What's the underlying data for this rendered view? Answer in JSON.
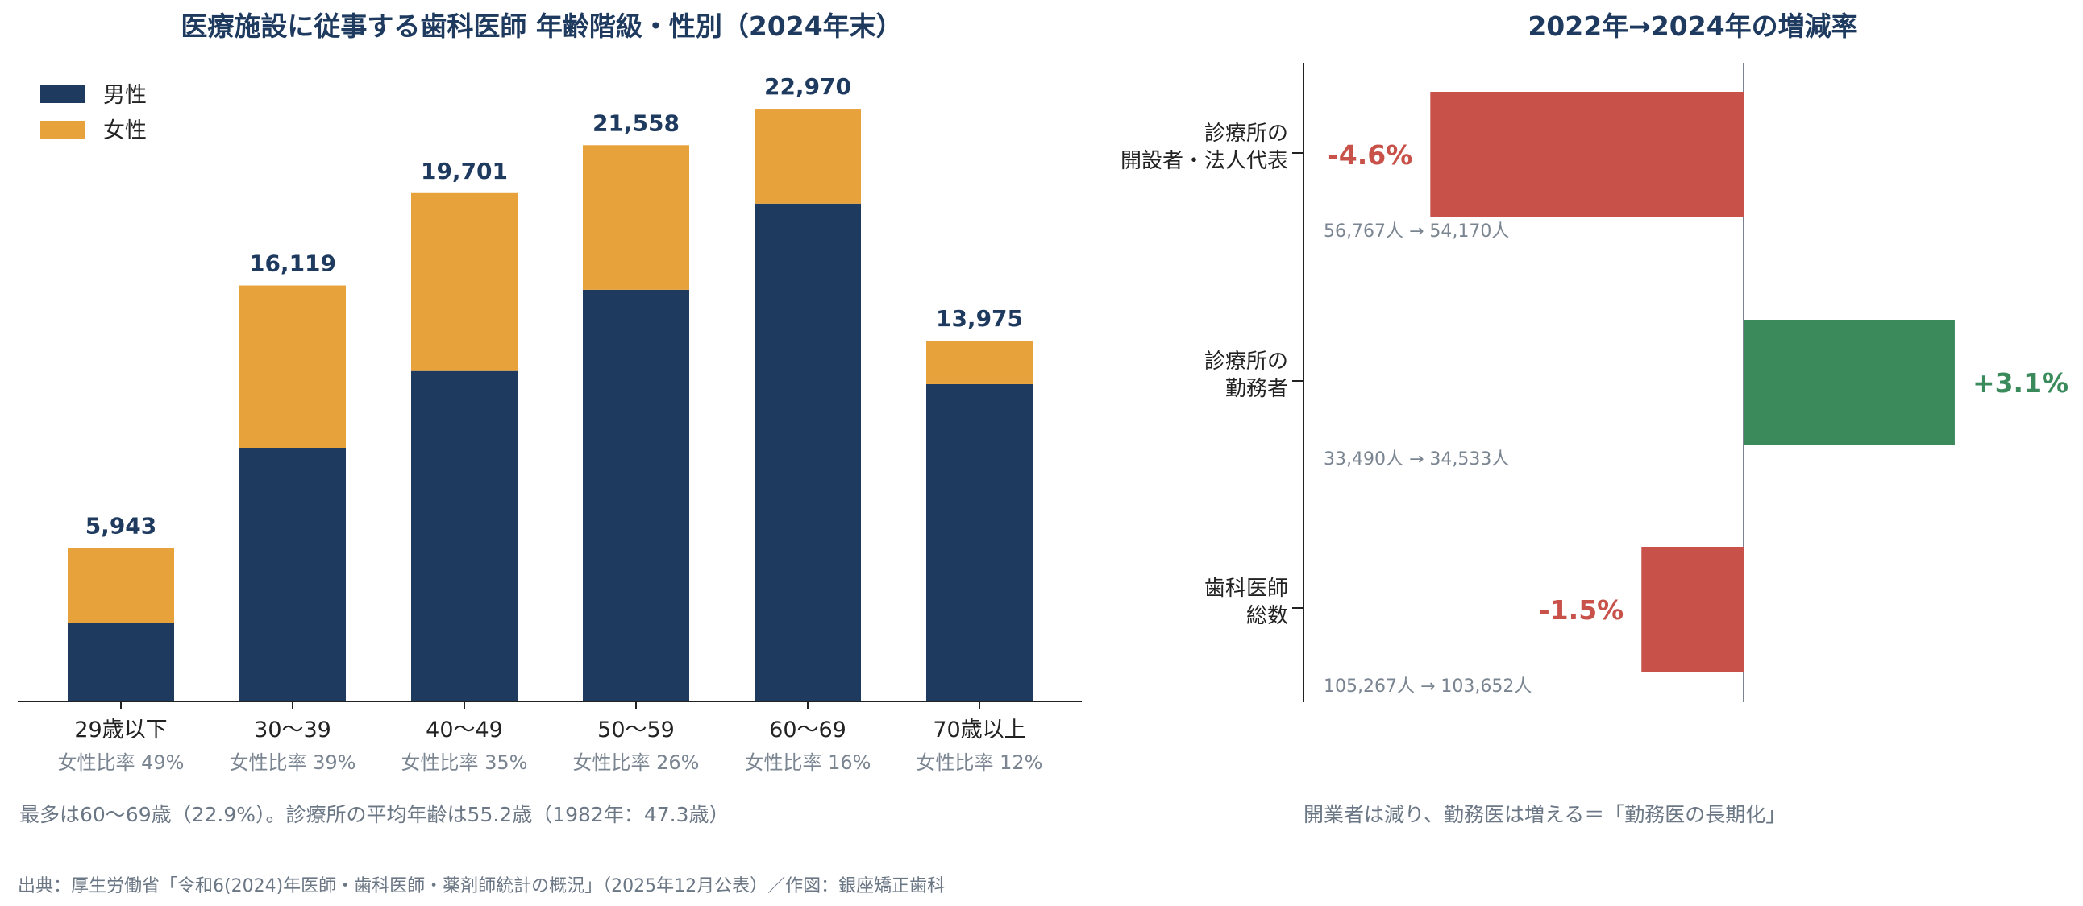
{
  "colors": {
    "male": "#1e3a5f",
    "female": "#e8a23c",
    "decrease": "#c8524a",
    "increase": "#3a8a5c",
    "axis": "#222222",
    "zero_line": "#7a8591"
  },
  "chart_data": [
    {
      "type": "bar",
      "stacked": true,
      "title": "医療施設に従事する歯科医師 年齢階級・性別（2024年末）",
      "categories": [
        "29歳以下",
        "30〜39",
        "40〜49",
        "50〜59",
        "60〜69",
        "70歳以上"
      ],
      "series": [
        {
          "name": "男性",
          "values": [
            3031,
            9832,
            12806,
            15953,
            19295,
            12298
          ]
        },
        {
          "name": "女性",
          "values": [
            2912,
            6287,
            6895,
            5605,
            3675,
            1677
          ]
        }
      ],
      "totals": [
        5943,
        16119,
        19701,
        21558,
        22970,
        13975
      ],
      "total_labels": [
        "5,943",
        "16,119",
        "19,701",
        "21,558",
        "22,970",
        "13,975"
      ],
      "female_ratio_labels": [
        "女性比率 49%",
        "女性比率 39%",
        "女性比率 35%",
        "女性比率 26%",
        "女性比率 16%",
        "女性比率 12%"
      ],
      "ylim": [
        0,
        25000
      ],
      "xlabel": "",
      "ylabel": "",
      "grid": false,
      "legend_position": "top-left",
      "note": "最多は60〜69歳（22.9%）。診療所の平均年齢は55.2歳（1982年：47.3歳）"
    },
    {
      "type": "bar",
      "orientation": "horizontal",
      "title": "2022年→2024年の増減率",
      "categories": [
        [
          "診療所の",
          "開設者・法人代表"
        ],
        [
          "診療所の",
          "勤務者"
        ],
        [
          "歯科医師",
          "総数"
        ]
      ],
      "values": [
        -4.6,
        3.1,
        -1.5
      ],
      "value_labels": [
        "-4.6%",
        "+3.1%",
        "-1.5%"
      ],
      "counts": [
        "56,767人 → 54,170人",
        "33,490人 → 34,533人",
        "105,267人 → 103,652人"
      ],
      "xlim": [
        -6.5,
        3.5
      ],
      "grid": false,
      "note": "開業者は減り、勤務医は増える＝「勤務医の長期化」"
    }
  ],
  "source": "出典：厚生労働省「令和6(2024)年医師・歯科医師・薬剤師統計の概況」（2025年12月公表）／作図：銀座矯正歯科"
}
